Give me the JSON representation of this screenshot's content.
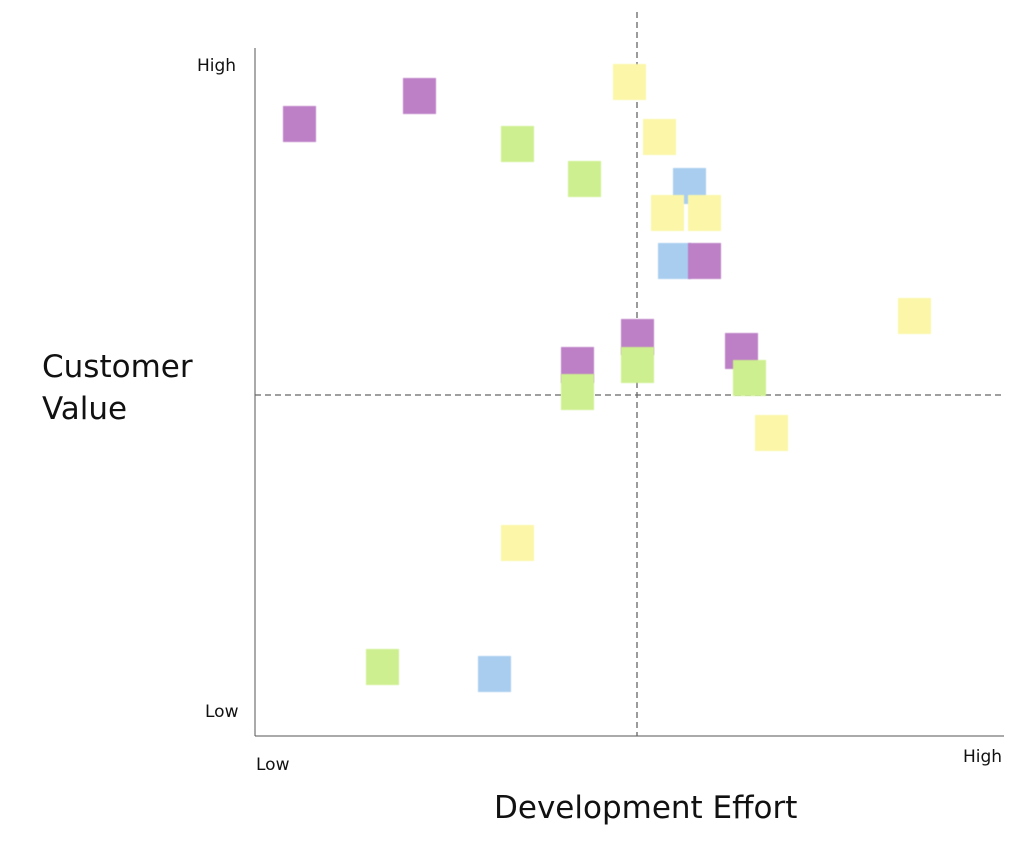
{
  "chart_data": {
    "type": "scatter",
    "title": "",
    "xlabel": "Development Effort",
    "ylabel": "Customer Value",
    "x_low_label": "Low",
    "x_high_label": "High",
    "y_low_label": "Low",
    "y_high_label": "High",
    "xlim": [
      0,
      100
    ],
    "ylim": [
      0,
      100
    ],
    "x_divider": 51,
    "y_divider": 50,
    "colors": {
      "yellow": "#fcf7a8",
      "green": "#cdef8f",
      "purple": "#bd7fc6",
      "blue": "#a9cdef"
    },
    "points": [
      {
        "color": "purple",
        "x": 6,
        "y": 89
      },
      {
        "color": "purple",
        "x": 22,
        "y": 93
      },
      {
        "color": "yellow",
        "x": 50,
        "y": 95
      },
      {
        "color": "green",
        "x": 35,
        "y": 86
      },
      {
        "color": "yellow",
        "x": 54,
        "y": 87
      },
      {
        "color": "green",
        "x": 44,
        "y": 81
      },
      {
        "color": "blue",
        "x": 58,
        "y": 80
      },
      {
        "color": "yellow",
        "x": 55,
        "y": 76
      },
      {
        "color": "yellow",
        "x": 60,
        "y": 76
      },
      {
        "color": "blue",
        "x": 56,
        "y": 69
      },
      {
        "color": "purple",
        "x": 60,
        "y": 69
      },
      {
        "color": "yellow",
        "x": 88,
        "y": 61
      },
      {
        "color": "purple",
        "x": 51,
        "y": 58
      },
      {
        "color": "purple",
        "x": 65,
        "y": 56
      },
      {
        "color": "purple",
        "x": 43,
        "y": 54
      },
      {
        "color": "green",
        "x": 51,
        "y": 54
      },
      {
        "color": "green",
        "x": 66,
        "y": 52
      },
      {
        "color": "green",
        "x": 43,
        "y": 50
      },
      {
        "color": "yellow",
        "x": 69,
        "y": 44
      },
      {
        "color": "yellow",
        "x": 35,
        "y": 28
      },
      {
        "color": "green",
        "x": 17,
        "y": 10
      },
      {
        "color": "blue",
        "x": 32,
        "y": 9
      }
    ]
  }
}
